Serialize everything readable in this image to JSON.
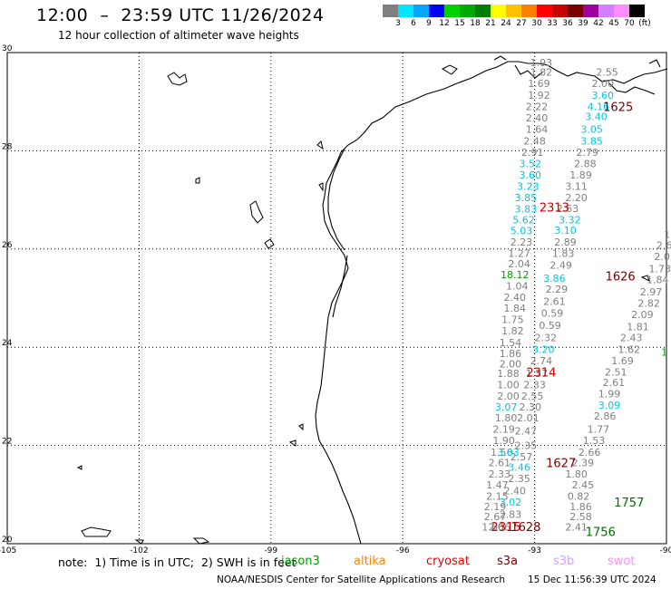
{
  "header": {
    "title": "12:00  –  23:59 UTC 11/26/2024",
    "subtitle": "12 hour collection of altimeter wave heights"
  },
  "color_scale": {
    "labels": [
      "3",
      "6",
      "9",
      "12",
      "15",
      "18",
      "21",
      "24",
      "27",
      "30",
      "33",
      "36",
      "39",
      "42",
      "45",
      "70",
      "(ft)"
    ],
    "colors": [
      "#7f7f7f",
      "#00e5ff",
      "#00a6ff",
      "#0000ff",
      "#00d200",
      "#00aa00",
      "#008000",
      "#ffff00",
      "#ffc000",
      "#ff8000",
      "#ff0000",
      "#c80000",
      "#780000",
      "#a000a0",
      "#d37fff",
      "#ff8cff",
      "#000000"
    ]
  },
  "chart_data": {
    "type": "map",
    "xlim": [
      -105,
      -90
    ],
    "ylim": [
      20,
      30
    ],
    "x_ticks": [
      {
        "value": -105,
        "label": "-105"
      },
      {
        "value": -102,
        "label": "-102"
      },
      {
        "value": -99,
        "label": "-99"
      },
      {
        "value": -96,
        "label": "-96"
      },
      {
        "value": -93,
        "label": "-93"
      },
      {
        "value": -90,
        "label": "-90"
      }
    ],
    "y_ticks": [
      {
        "value": 30,
        "label": "30"
      },
      {
        "value": 28,
        "label": "28"
      },
      {
        "value": 26,
        "label": "26"
      },
      {
        "value": 24,
        "label": "24"
      },
      {
        "value": 22,
        "label": "22"
      },
      {
        "value": 20,
        "label": "20"
      }
    ],
    "grid": true,
    "observations": [
      {
        "lon": -92.85,
        "lat": 29.8,
        "v": "1.93",
        "c": "#7f7f7f"
      },
      {
        "lon": -92.85,
        "lat": 29.6,
        "v": "1.82",
        "c": "#7f7f7f"
      },
      {
        "lon": -92.9,
        "lat": 29.37,
        "v": "1.69",
        "c": "#7f7f7f"
      },
      {
        "lon": -92.9,
        "lat": 29.13,
        "v": "1.92",
        "c": "#7f7f7f"
      },
      {
        "lon": -92.95,
        "lat": 28.9,
        "v": "2.22",
        "c": "#7f7f7f"
      },
      {
        "lon": -92.95,
        "lat": 28.67,
        "v": "2.40",
        "c": "#7f7f7f"
      },
      {
        "lon": -92.95,
        "lat": 28.44,
        "v": "1.64",
        "c": "#7f7f7f"
      },
      {
        "lon": -93.0,
        "lat": 28.2,
        "v": "2.48",
        "c": "#7f7f7f"
      },
      {
        "lon": -93.05,
        "lat": 27.97,
        "v": "2.91",
        "c": "#7f7f7f"
      },
      {
        "lon": -93.1,
        "lat": 27.74,
        "v": "3.52",
        "c": "#00c8e6"
      },
      {
        "lon": -93.1,
        "lat": 27.51,
        "v": "3.60",
        "c": "#00c8e6"
      },
      {
        "lon": -93.15,
        "lat": 27.28,
        "v": "3.23",
        "c": "#00c8e6"
      },
      {
        "lon": -93.2,
        "lat": 27.05,
        "v": "3.85",
        "c": "#00c8e6"
      },
      {
        "lon": -93.2,
        "lat": 26.82,
        "v": "3.83",
        "c": "#00c8e6"
      },
      {
        "lon": -93.25,
        "lat": 26.6,
        "v": "5.62",
        "c": "#00c8e6"
      },
      {
        "lon": -93.3,
        "lat": 26.37,
        "v": "5.03",
        "c": "#00c8e6"
      },
      {
        "lon": -93.3,
        "lat": 26.14,
        "v": "2.23",
        "c": "#7f7f7f"
      },
      {
        "lon": -93.35,
        "lat": 25.91,
        "v": "1.27",
        "c": "#7f7f7f"
      },
      {
        "lon": -93.35,
        "lat": 25.7,
        "v": "2.04",
        "c": "#7f7f7f"
      },
      {
        "lon": -93.45,
        "lat": 25.48,
        "v": "18.12",
        "c": "#00a000"
      },
      {
        "lon": -93.4,
        "lat": 25.25,
        "v": "1.04",
        "c": "#7f7f7f"
      },
      {
        "lon": -93.45,
        "lat": 25.02,
        "v": "2.40",
        "c": "#7f7f7f"
      },
      {
        "lon": -93.45,
        "lat": 24.8,
        "v": "1.84",
        "c": "#7f7f7f"
      },
      {
        "lon": -93.5,
        "lat": 24.57,
        "v": "1.75",
        "c": "#7f7f7f"
      },
      {
        "lon": -93.5,
        "lat": 24.34,
        "v": "1.82",
        "c": "#7f7f7f"
      },
      {
        "lon": -93.55,
        "lat": 24.1,
        "v": "1.54",
        "c": "#7f7f7f"
      },
      {
        "lon": -93.55,
        "lat": 23.87,
        "v": "1.86",
        "c": "#7f7f7f"
      },
      {
        "lon": -93.55,
        "lat": 23.66,
        "v": "2.00",
        "c": "#7f7f7f"
      },
      {
        "lon": -93.6,
        "lat": 23.47,
        "v": "1.88",
        "c": "#7f7f7f"
      },
      {
        "lon": -93.6,
        "lat": 23.24,
        "v": "1.00",
        "c": "#7f7f7f"
      },
      {
        "lon": -93.6,
        "lat": 23.01,
        "v": "2.00",
        "c": "#7f7f7f"
      },
      {
        "lon": -93.65,
        "lat": 22.79,
        "v": "3.07",
        "c": "#00c8e6"
      },
      {
        "lon": -93.65,
        "lat": 22.56,
        "v": "1.80",
        "c": "#7f7f7f"
      },
      {
        "lon": -93.7,
        "lat": 22.33,
        "v": "2.19",
        "c": "#7f7f7f"
      },
      {
        "lon": -93.7,
        "lat": 22.1,
        "v": "1.90",
        "c": "#7f7f7f"
      },
      {
        "lon": -93.75,
        "lat": 21.86,
        "v": "1.56",
        "c": "#7f7f7f"
      },
      {
        "lon": -93.8,
        "lat": 21.65,
        "v": "2.61",
        "c": "#7f7f7f"
      },
      {
        "lon": -93.8,
        "lat": 21.42,
        "v": "2.33",
        "c": "#7f7f7f"
      },
      {
        "lon": -93.85,
        "lat": 21.2,
        "v": "1.47",
        "c": "#7f7f7f"
      },
      {
        "lon": -93.85,
        "lat": 20.97,
        "v": "2.15",
        "c": "#7f7f7f"
      },
      {
        "lon": -93.9,
        "lat": 20.76,
        "v": "2.19",
        "c": "#7f7f7f"
      },
      {
        "lon": -93.9,
        "lat": 20.55,
        "v": "2.67",
        "c": "#7f7f7f"
      },
      {
        "lon": -93.95,
        "lat": 20.34,
        "v": "1.60",
        "c": "#7f7f7f"
      },
      {
        "lon": -93.8,
        "lat": 20.34,
        "v": "2.66",
        "c": "#7f7f7f"
      },
      {
        "lon": -93.55,
        "lat": 20.6,
        "v": "2.83",
        "c": "#7f7f7f"
      },
      {
        "lon": -93.55,
        "lat": 20.85,
        "v": "3.02",
        "c": "#00c8e6"
      },
      {
        "lon": -93.45,
        "lat": 21.08,
        "v": "2.40",
        "c": "#7f7f7f"
      },
      {
        "lon": -93.35,
        "lat": 21.33,
        "v": "2.35",
        "c": "#7f7f7f"
      },
      {
        "lon": -93.35,
        "lat": 21.56,
        "v": "3.46",
        "c": "#00c8e6"
      },
      {
        "lon": -93.3,
        "lat": 21.77,
        "v": "2.57",
        "c": "#7f7f7f"
      },
      {
        "lon": -93.6,
        "lat": 21.86,
        "v": "3.03",
        "c": "#00c8e6"
      },
      {
        "lon": -93.2,
        "lat": 22.0,
        "v": "2.35",
        "c": "#7f7f7f"
      },
      {
        "lon": -93.2,
        "lat": 22.3,
        "v": "2.47",
        "c": "#7f7f7f"
      },
      {
        "lon": -93.15,
        "lat": 22.56,
        "v": "2.01",
        "c": "#7f7f7f"
      },
      {
        "lon": -93.1,
        "lat": 22.79,
        "v": "2.30",
        "c": "#7f7f7f"
      },
      {
        "lon": -93.05,
        "lat": 23.01,
        "v": "2.55",
        "c": "#7f7f7f"
      },
      {
        "lon": -93.0,
        "lat": 23.24,
        "v": "2.33",
        "c": "#7f7f7f"
      },
      {
        "lon": -92.95,
        "lat": 23.47,
        "v": "1.37",
        "c": "#7f7f7f"
      },
      {
        "lon": -92.85,
        "lat": 23.73,
        "v": "2.74",
        "c": "#7f7f7f"
      },
      {
        "lon": -92.8,
        "lat": 23.96,
        "v": "3.20",
        "c": "#00c8e6"
      },
      {
        "lon": -92.75,
        "lat": 24.2,
        "v": "2.32",
        "c": "#7f7f7f"
      },
      {
        "lon": -92.65,
        "lat": 24.45,
        "v": "0.59",
        "c": "#7f7f7f"
      },
      {
        "lon": -92.6,
        "lat": 24.7,
        "v": "0.59",
        "c": "#7f7f7f"
      },
      {
        "lon": -92.55,
        "lat": 24.94,
        "v": "2.61",
        "c": "#7f7f7f"
      },
      {
        "lon": -92.5,
        "lat": 25.18,
        "v": "2.29",
        "c": "#7f7f7f"
      },
      {
        "lon": -92.55,
        "lat": 25.41,
        "v": "3.86",
        "c": "#00c8e6"
      },
      {
        "lon": -92.4,
        "lat": 25.67,
        "v": "2.49",
        "c": "#7f7f7f"
      },
      {
        "lon": -92.35,
        "lat": 25.91,
        "v": "1.83",
        "c": "#7f7f7f"
      },
      {
        "lon": -92.3,
        "lat": 26.14,
        "v": "2.89",
        "c": "#7f7f7f"
      },
      {
        "lon": -92.3,
        "lat": 26.38,
        "v": "3.10",
        "c": "#00c8e6"
      },
      {
        "lon": -92.2,
        "lat": 26.6,
        "v": "3.32",
        "c": "#00c8e6"
      },
      {
        "lon": -92.25,
        "lat": 26.83,
        "v": "2.63",
        "c": "#7f7f7f"
      },
      {
        "lon": -92.05,
        "lat": 27.05,
        "v": "2.20",
        "c": "#7f7f7f"
      },
      {
        "lon": -92.05,
        "lat": 27.28,
        "v": "3.11",
        "c": "#7f7f7f"
      },
      {
        "lon": -91.95,
        "lat": 27.51,
        "v": "1.89",
        "c": "#7f7f7f"
      },
      {
        "lon": -91.85,
        "lat": 27.74,
        "v": "2.88",
        "c": "#7f7f7f"
      },
      {
        "lon": -91.8,
        "lat": 27.97,
        "v": "2.79",
        "c": "#7f7f7f"
      },
      {
        "lon": -91.7,
        "lat": 28.2,
        "v": "3.85",
        "c": "#00c8e6"
      },
      {
        "lon": -91.7,
        "lat": 28.44,
        "v": "3.05",
        "c": "#00c8e6"
      },
      {
        "lon": -91.6,
        "lat": 28.7,
        "v": "3.40",
        "c": "#00c8e6"
      },
      {
        "lon": -91.55,
        "lat": 28.9,
        "v": "4.16",
        "c": "#00c8e6"
      },
      {
        "lon": -91.45,
        "lat": 29.13,
        "v": "3.60",
        "c": "#00c8e6"
      },
      {
        "lon": -91.45,
        "lat": 29.37,
        "v": "2.00",
        "c": "#7f7f7f"
      },
      {
        "lon": -91.35,
        "lat": 29.6,
        "v": "2.55",
        "c": "#7f7f7f"
      },
      {
        "lon": -92.05,
        "lat": 20.34,
        "v": "2.41",
        "c": "#7f7f7f"
      },
      {
        "lon": -91.95,
        "lat": 20.55,
        "v": "2.58",
        "c": "#7f7f7f"
      },
      {
        "lon": -91.95,
        "lat": 20.76,
        "v": "1.86",
        "c": "#7f7f7f"
      },
      {
        "lon": -92.0,
        "lat": 20.97,
        "v": "0.82",
        "c": "#7f7f7f"
      },
      {
        "lon": -91.9,
        "lat": 21.2,
        "v": "2.45",
        "c": "#7f7f7f"
      },
      {
        "lon": -92.05,
        "lat": 21.42,
        "v": "1.80",
        "c": "#7f7f7f"
      },
      {
        "lon": -91.9,
        "lat": 21.65,
        "v": "2.39",
        "c": "#7f7f7f"
      },
      {
        "lon": -91.75,
        "lat": 21.86,
        "v": "2.66",
        "c": "#7f7f7f"
      },
      {
        "lon": -91.65,
        "lat": 22.1,
        "v": "1.53",
        "c": "#7f7f7f"
      },
      {
        "lon": -91.55,
        "lat": 22.33,
        "v": "1.77",
        "c": "#7f7f7f"
      },
      {
        "lon": -91.4,
        "lat": 22.6,
        "v": "2.86",
        "c": "#7f7f7f"
      },
      {
        "lon": -91.3,
        "lat": 22.82,
        "v": "3.09",
        "c": "#00c8e6"
      },
      {
        "lon": -91.3,
        "lat": 23.05,
        "v": "1.99",
        "c": "#7f7f7f"
      },
      {
        "lon": -91.2,
        "lat": 23.28,
        "v": "2.61",
        "c": "#7f7f7f"
      },
      {
        "lon": -91.15,
        "lat": 23.5,
        "v": "2.51",
        "c": "#7f7f7f"
      },
      {
        "lon": -91.0,
        "lat": 23.73,
        "v": "1.69",
        "c": "#7f7f7f"
      },
      {
        "lon": -90.85,
        "lat": 23.96,
        "v": "1.62",
        "c": "#7f7f7f"
      },
      {
        "lon": -90.8,
        "lat": 24.2,
        "v": "2.43",
        "c": "#7f7f7f"
      },
      {
        "lon": -90.65,
        "lat": 24.42,
        "v": "1.81",
        "c": "#7f7f7f"
      },
      {
        "lon": -90.55,
        "lat": 24.67,
        "v": "2.09",
        "c": "#7f7f7f"
      },
      {
        "lon": -90.4,
        "lat": 24.9,
        "v": "2.82",
        "c": "#7f7f7f"
      },
      {
        "lon": -90.35,
        "lat": 25.13,
        "v": "2.97",
        "c": "#7f7f7f"
      },
      {
        "lon": -90.2,
        "lat": 25.38,
        "v": "1.84",
        "c": "#7f7f7f"
      },
      {
        "lon": -90.15,
        "lat": 25.6,
        "v": "1.73",
        "c": "#7f7f7f"
      },
      {
        "lon": -90.1,
        "lat": 25.85,
        "v": "2.0",
        "c": "#7f7f7f"
      },
      {
        "lon": -90.05,
        "lat": 26.08,
        "v": "2.6",
        "c": "#7f7f7f"
      },
      {
        "lon": -89.95,
        "lat": 26.3,
        "v": "1.",
        "c": "#7f7f7f"
      },
      {
        "lon": -90.05,
        "lat": 23.9,
        "v": "1",
        "c": "#00a000"
      }
    ],
    "passes": [
      {
        "lon": -91.1,
        "lat": 28.9,
        "label": "1625",
        "c": "#780000"
      },
      {
        "lon": -92.55,
        "lat": 26.85,
        "label": "2313",
        "c": "#cc0000"
      },
      {
        "lon": -91.05,
        "lat": 25.45,
        "label": "1626",
        "c": "#780000"
      },
      {
        "lon": -92.85,
        "lat": 23.5,
        "label": "2314",
        "c": "#cc0000"
      },
      {
        "lon": -92.4,
        "lat": 21.65,
        "label": "1627",
        "c": "#780000"
      },
      {
        "lon": -90.85,
        "lat": 20.85,
        "label": "1757",
        "c": "#007000"
      },
      {
        "lon": -91.5,
        "lat": 20.25,
        "label": "1756",
        "c": "#007000"
      },
      {
        "lon": -93.2,
        "lat": 20.35,
        "label": "1628",
        "c": "#780000"
      },
      {
        "lon": -93.65,
        "lat": 20.35,
        "label": "2315",
        "c": "#cc0000"
      }
    ]
  },
  "legend": {
    "note": "note:  1) Time is in UTC;  2) SWH is in feet",
    "satellites": [
      {
        "name": "jason3",
        "color": "#00a000"
      },
      {
        "name": "altika",
        "color": "#ff8000"
      },
      {
        "name": "cryosat",
        "color": "#e60000"
      },
      {
        "name": "s3a",
        "color": "#780000"
      },
      {
        "name": "s3b",
        "color": "#d3a0ff"
      },
      {
        "name": "swot",
        "color": "#ff8cff"
      }
    ]
  },
  "footer": {
    "credit": "NOAA/NESDIS Center for Satellite Applications and Research",
    "timestamp": "15 Dec 11:56:39 UTC 2024"
  }
}
